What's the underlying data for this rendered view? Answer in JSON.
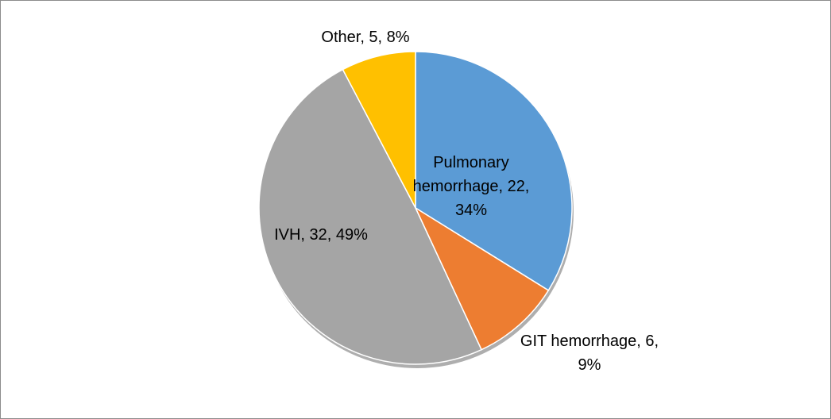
{
  "chart_data": {
    "type": "pie",
    "categories": [
      "Pulmonary hemorrhage",
      "GIT hemorrhage",
      "IVH",
      "Other"
    ],
    "values": [
      22,
      6,
      32,
      5
    ],
    "value_labels": [
      "Pulmonary hemorrhage, 22, 34%",
      "GIT hemorrhage, 6, 9%",
      "IVH, 32, 49%",
      "Other, 5, 8%"
    ],
    "colors": [
      "#5b9bd5",
      "#ed7d31",
      "#a5a5a5",
      "#ffc000"
    ]
  }
}
